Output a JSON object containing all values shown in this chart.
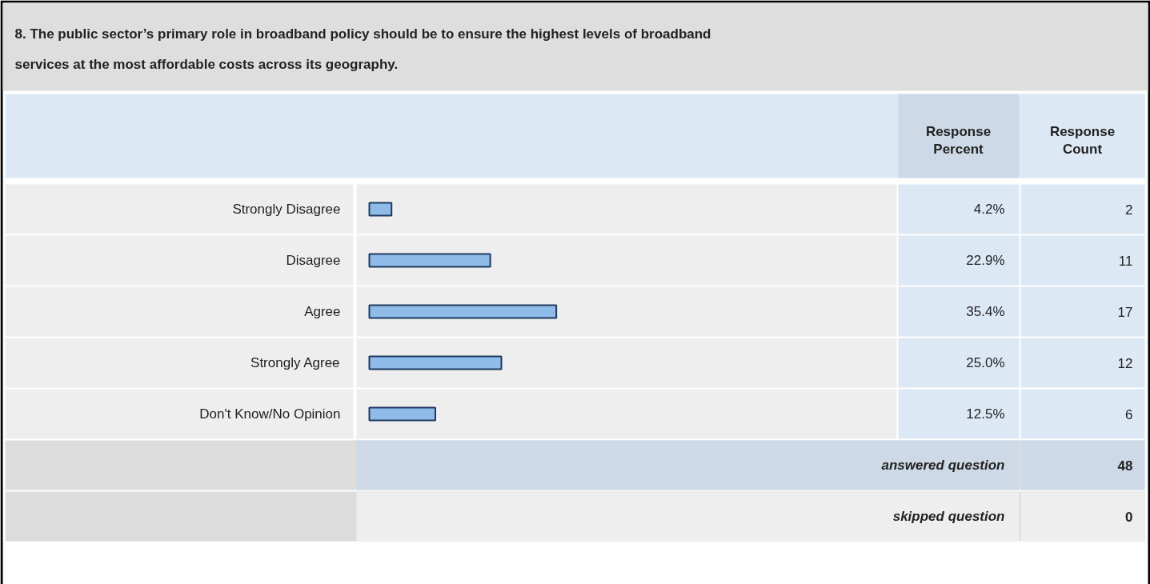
{
  "chart_data": {
    "type": "bar",
    "orientation": "horizontal",
    "title": "8. The public sector’s primary role in broadband policy should be to ensure the highest levels of broadband services at the most affordable costs across its geography.",
    "categories": [
      "Strongly Disagree",
      "Disagree",
      "Agree",
      "Strongly Agree",
      "Don't Know/No Opinion"
    ],
    "values": [
      4.2,
      22.9,
      35.4,
      25.0,
      12.5
    ],
    "value_labels": [
      "4.2%",
      "22.9%",
      "35.4%",
      "25.0%",
      "12.5%"
    ],
    "color": "#8fbbe8",
    "annotations": [
      "Response Percent",
      "Response Count",
      "2",
      "11",
      "17",
      "12",
      "6",
      "answered question",
      "48",
      "skipped question",
      "0"
    ]
  }
}
